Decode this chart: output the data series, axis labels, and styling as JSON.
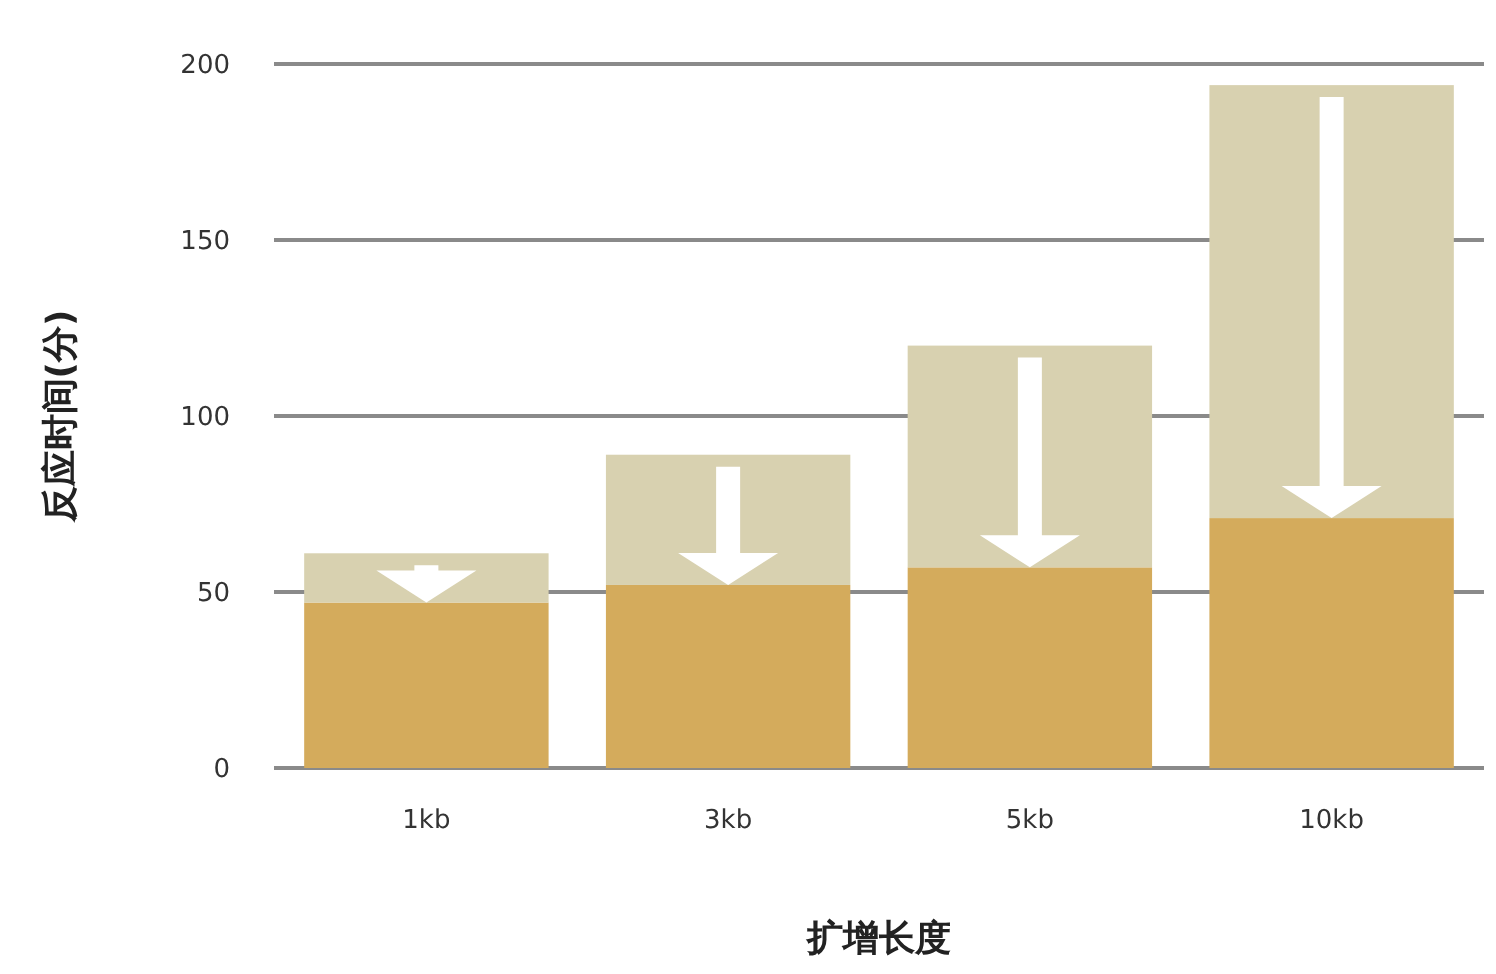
{
  "chart_data": {
    "type": "bar",
    "xlabel": "扩增长度",
    "ylabel": "反应时间(分)",
    "categories": [
      "1kb",
      "3kb",
      "5kb",
      "10kb"
    ],
    "series": [
      {
        "color": "#d4ab5c",
        "values": [
          47,
          52,
          57,
          71
        ]
      },
      {
        "color": "#d8d1b0",
        "values": [
          14,
          37,
          63,
          123
        ]
      }
    ],
    "stacked": true,
    "ylim": [
      0,
      200
    ],
    "yticks": [
      0,
      50,
      100,
      150,
      200
    ],
    "grid": "y"
  }
}
